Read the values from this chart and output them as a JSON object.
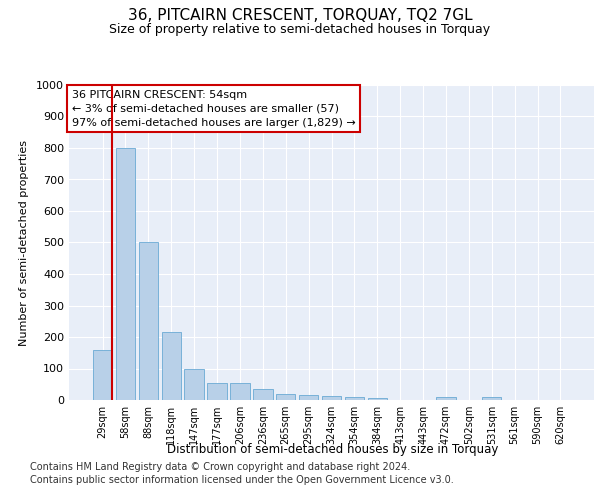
{
  "title": "36, PITCAIRN CRESCENT, TORQUAY, TQ2 7GL",
  "subtitle": "Size of property relative to semi-detached houses in Torquay",
  "xlabel": "Distribution of semi-detached houses by size in Torquay",
  "ylabel": "Number of semi-detached properties",
  "footnote1": "Contains HM Land Registry data © Crown copyright and database right 2024.",
  "footnote2": "Contains public sector information licensed under the Open Government Licence v3.0.",
  "annotation_title": "36 PITCAIRN CRESCENT: 54sqm",
  "annotation_line2": "← 3% of semi-detached houses are smaller (57)",
  "annotation_line3": "97% of semi-detached houses are larger (1,829) →",
  "bar_color": "#b8d0e8",
  "bar_edge_color": "#6aaad4",
  "highlight_color": "#cc0000",
  "bg_color": "#e8eef8",
  "categories": [
    "29sqm",
    "58sqm",
    "88sqm",
    "118sqm",
    "147sqm",
    "177sqm",
    "206sqm",
    "236sqm",
    "265sqm",
    "295sqm",
    "324sqm",
    "354sqm",
    "384sqm",
    "413sqm",
    "443sqm",
    "472sqm",
    "502sqm",
    "531sqm",
    "561sqm",
    "590sqm",
    "620sqm"
  ],
  "values": [
    160,
    800,
    500,
    215,
    100,
    55,
    53,
    35,
    20,
    15,
    12,
    10,
    5,
    0,
    0,
    8,
    0,
    8,
    0,
    0,
    0
  ],
  "ylim": [
    0,
    1000
  ],
  "yticks": [
    0,
    100,
    200,
    300,
    400,
    500,
    600,
    700,
    800,
    900,
    1000
  ],
  "red_line_x": 0.42,
  "title_fontsize": 11,
  "subtitle_fontsize": 9,
  "ylabel_fontsize": 8,
  "xlabel_fontsize": 8.5,
  "tick_fontsize": 8,
  "xtick_fontsize": 7,
  "annotation_fontsize": 8,
  "footnote_fontsize": 7
}
